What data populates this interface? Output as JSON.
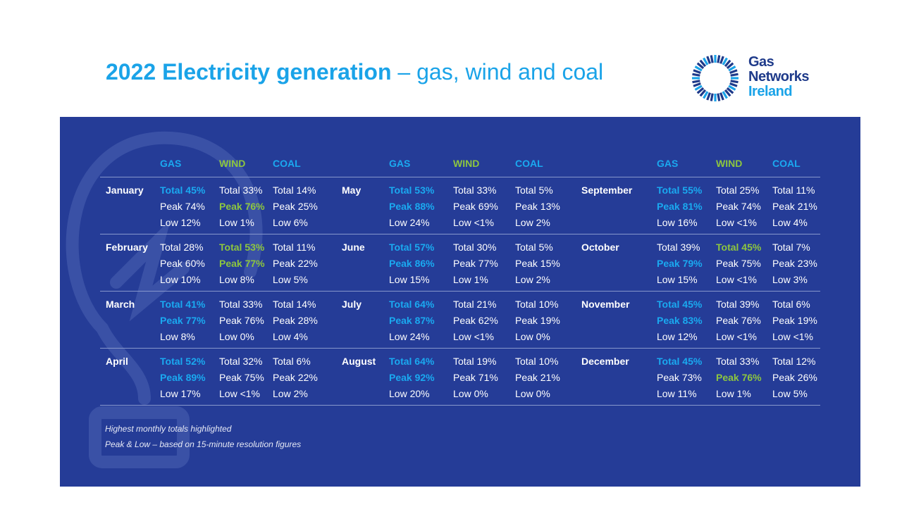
{
  "title": {
    "bold": "2022 Electricity generation",
    "rest": " – gas, wind and coal"
  },
  "logo": {
    "line1": "Gas",
    "line2": "Networks",
    "line3": "Ireland"
  },
  "headers": {
    "gas": "GAS",
    "wind": "WIND",
    "coal": "COAL"
  },
  "colors": {
    "panel": "#253c97",
    "gas_highlight": "#1aa9f0",
    "wind_highlight": "#8dc63f",
    "title": "#1aa3e8"
  },
  "groups": [
    {
      "months": [
        {
          "name": "January",
          "gas": [
            {
              "t": "Total 45%",
              "hl": true
            },
            {
              "t": "Peak 74%",
              "hl": false
            },
            {
              "t": "Low 12%",
              "hl": false
            }
          ],
          "wind": [
            {
              "t": "Total 33%",
              "hl": false
            },
            {
              "t": "Peak 76%",
              "hl": true
            },
            {
              "t": "Low 1%",
              "hl": false
            }
          ],
          "coal": [
            {
              "t": "Total 14%",
              "hl": false
            },
            {
              "t": "Peak 25%",
              "hl": false
            },
            {
              "t": "Low 6%",
              "hl": false
            }
          ]
        },
        {
          "name": "February",
          "gas": [
            {
              "t": "Total 28%",
              "hl": false
            },
            {
              "t": "Peak 60%",
              "hl": false
            },
            {
              "t": "Low 10%",
              "hl": false
            }
          ],
          "wind": [
            {
              "t": "Total 53%",
              "hl": true
            },
            {
              "t": "Peak 77%",
              "hl": true
            },
            {
              "t": "Low 8%",
              "hl": false
            }
          ],
          "coal": [
            {
              "t": "Total 11%",
              "hl": false
            },
            {
              "t": "Peak 22%",
              "hl": false
            },
            {
              "t": "Low 5%",
              "hl": false
            }
          ]
        },
        {
          "name": "March",
          "gas": [
            {
              "t": "Total 41%",
              "hl": true
            },
            {
              "t": "Peak 77%",
              "hl": true
            },
            {
              "t": "Low 8%",
              "hl": false
            }
          ],
          "wind": [
            {
              "t": "Total 33%",
              "hl": false
            },
            {
              "t": "Peak 76%",
              "hl": false
            },
            {
              "t": "Low 0%",
              "hl": false
            }
          ],
          "coal": [
            {
              "t": "Total 14%",
              "hl": false
            },
            {
              "t": "Peak 28%",
              "hl": false
            },
            {
              "t": "Low 4%",
              "hl": false
            }
          ]
        },
        {
          "name": "April",
          "gas": [
            {
              "t": "Total 52%",
              "hl": true
            },
            {
              "t": "Peak 89%",
              "hl": true
            },
            {
              "t": "Low 17%",
              "hl": false
            }
          ],
          "wind": [
            {
              "t": "Total 32%",
              "hl": false
            },
            {
              "t": "Peak 75%",
              "hl": false
            },
            {
              "t": "Low <1%",
              "hl": false
            }
          ],
          "coal": [
            {
              "t": "Total 6%",
              "hl": false
            },
            {
              "t": "Peak 22%",
              "hl": false
            },
            {
              "t": "Low 2%",
              "hl": false
            }
          ]
        }
      ]
    },
    {
      "months": [
        {
          "name": "May",
          "gas": [
            {
              "t": "Total 53%",
              "hl": true
            },
            {
              "t": "Peak 88%",
              "hl": true
            },
            {
              "t": "Low 24%",
              "hl": false
            }
          ],
          "wind": [
            {
              "t": "Total 33%",
              "hl": false
            },
            {
              "t": "Peak 69%",
              "hl": false
            },
            {
              "t": "Low <1%",
              "hl": false
            }
          ],
          "coal": [
            {
              "t": "Total 5%",
              "hl": false
            },
            {
              "t": "Peak 13%",
              "hl": false
            },
            {
              "t": "Low 2%",
              "hl": false
            }
          ]
        },
        {
          "name": "June",
          "gas": [
            {
              "t": "Total 57%",
              "hl": true
            },
            {
              "t": "Peak 86%",
              "hl": true
            },
            {
              "t": "Low 15%",
              "hl": false
            }
          ],
          "wind": [
            {
              "t": "Total 30%",
              "hl": false
            },
            {
              "t": "Peak  77%",
              "hl": false
            },
            {
              "t": "Low 1%",
              "hl": false
            }
          ],
          "coal": [
            {
              "t": "Total 5%",
              "hl": false
            },
            {
              "t": "Peak 15%",
              "hl": false
            },
            {
              "t": "Low 2%",
              "hl": false
            }
          ]
        },
        {
          "name": "July",
          "gas": [
            {
              "t": "Total 64%",
              "hl": true
            },
            {
              "t": "Peak 87%",
              "hl": true
            },
            {
              "t": "Low 24%",
              "hl": false
            }
          ],
          "wind": [
            {
              "t": "Total 21%",
              "hl": false
            },
            {
              "t": "Peak 62%",
              "hl": false
            },
            {
              "t": "Low <1%",
              "hl": false
            }
          ],
          "coal": [
            {
              "t": "Total 10%",
              "hl": false
            },
            {
              "t": "Peak 19%",
              "hl": false
            },
            {
              "t": "Low 0%",
              "hl": false
            }
          ]
        },
        {
          "name": "August",
          "gas": [
            {
              "t": "Total 64%",
              "hl": true
            },
            {
              "t": "Peak 92%",
              "hl": true
            },
            {
              "t": "Low 20%",
              "hl": false
            }
          ],
          "wind": [
            {
              "t": "Total 19%",
              "hl": false
            },
            {
              "t": "Peak 71%",
              "hl": false
            },
            {
              "t": "Low 0%",
              "hl": false
            }
          ],
          "coal": [
            {
              "t": "Total 10%",
              "hl": false
            },
            {
              "t": "Peak 21%",
              "hl": false
            },
            {
              "t": "Low 0%",
              "hl": false
            }
          ]
        }
      ]
    },
    {
      "months": [
        {
          "name": "September",
          "gas": [
            {
              "t": "Total 55%",
              "hl": true
            },
            {
              "t": "Peak  81%",
              "hl": true
            },
            {
              "t": "Low 16%",
              "hl": false
            }
          ],
          "wind": [
            {
              "t": "Total 25%",
              "hl": false
            },
            {
              "t": "Peak 74%",
              "hl": false
            },
            {
              "t": "Low <1%",
              "hl": false
            }
          ],
          "coal": [
            {
              "t": "Total 11%",
              "hl": false
            },
            {
              "t": "Peak 21%",
              "hl": false
            },
            {
              "t": "Low 4%",
              "hl": false
            }
          ]
        },
        {
          "name": "October",
          "gas": [
            {
              "t": "Total 39%",
              "hl": false
            },
            {
              "t": "Peak 79%",
              "hl": true
            },
            {
              "t": "Low 15%",
              "hl": false
            }
          ],
          "wind": [
            {
              "t": "Total 45%",
              "hl": true
            },
            {
              "t": "Peak 75%",
              "hl": false
            },
            {
              "t": "Low <1%",
              "hl": false
            }
          ],
          "coal": [
            {
              "t": "Total 7%",
              "hl": false
            },
            {
              "t": "Peak 23%",
              "hl": false
            },
            {
              "t": "Low 3%",
              "hl": false
            }
          ]
        },
        {
          "name": "November",
          "gas": [
            {
              "t": "Total 45%",
              "hl": true
            },
            {
              "t": "Peak 83%",
              "hl": true
            },
            {
              "t": "Low 12%",
              "hl": false
            }
          ],
          "wind": [
            {
              "t": "Total 39%",
              "hl": false
            },
            {
              "t": "Peak 76%",
              "hl": false
            },
            {
              "t": "Low <1%",
              "hl": false
            }
          ],
          "coal": [
            {
              "t": "Total 6%",
              "hl": false
            },
            {
              "t": "Peak 19%",
              "hl": false
            },
            {
              "t": "Low <1%",
              "hl": false
            }
          ]
        },
        {
          "name": "December",
          "gas": [
            {
              "t": "Total 45%",
              "hl": true
            },
            {
              "t": "Peak 73%",
              "hl": false
            },
            {
              "t": "Low 11%",
              "hl": false
            }
          ],
          "wind": [
            {
              "t": "Total 33%",
              "hl": false
            },
            {
              "t": "Peak 76%",
              "hl": true
            },
            {
              "t": "Low 1%",
              "hl": false
            }
          ],
          "coal": [
            {
              "t": "Total 12%",
              "hl": false
            },
            {
              "t": "Peak 26%",
              "hl": false
            },
            {
              "t": "Low 5%",
              "hl": false
            }
          ]
        }
      ]
    }
  ],
  "notes": [
    "Highest monthly totals highlighted",
    "Peak & Low – based on 15-minute resolution figures"
  ]
}
